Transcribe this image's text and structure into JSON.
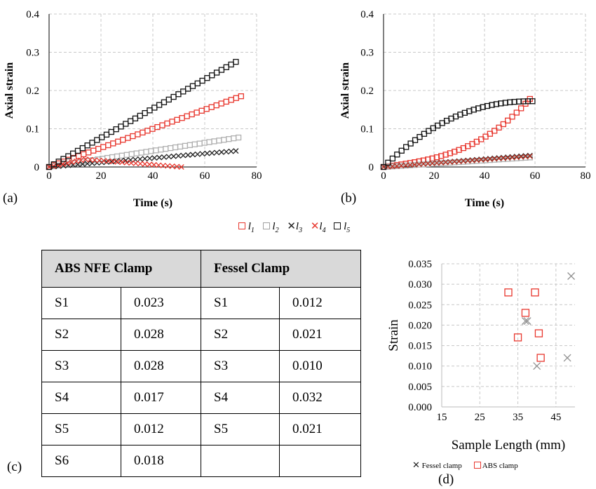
{
  "panels": {
    "a": {
      "label": "(a)"
    },
    "b": {
      "label": "(b)"
    },
    "c": {
      "label": "(c)"
    },
    "d": {
      "label": "(d)"
    }
  },
  "legend_top": [
    {
      "mark": "square",
      "color": "#e8372e",
      "name": "l",
      "sub": "1"
    },
    {
      "mark": "square",
      "color": "#a0a0a0",
      "name": "l",
      "sub": "2"
    },
    {
      "mark": "cross",
      "color": "#222222",
      "name": "l",
      "sub": "3"
    },
    {
      "mark": "cross",
      "color": "#e8372e",
      "name": "l",
      "sub": "4"
    },
    {
      "mark": "square",
      "color": "#111111",
      "name": "l",
      "sub": "5"
    }
  ],
  "table": {
    "headers": [
      "ABS NFE Clamp",
      "Fessel Clamp"
    ],
    "rows": [
      [
        "S1",
        "0.023",
        "S1",
        "0.012"
      ],
      [
        "S2",
        "0.028",
        "S2",
        "0.021"
      ],
      [
        "S3",
        "0.028",
        "S3",
        "0.010"
      ],
      [
        "S4",
        "0.017",
        "S4",
        "0.032"
      ],
      [
        "S5",
        "0.012",
        "S5",
        "0.021"
      ],
      [
        "S6",
        "0.018",
        "",
        ""
      ]
    ]
  },
  "chart_data": [
    {
      "id": "a",
      "type": "scatter",
      "title": "",
      "xlabel": "Time (s)",
      "ylabel": "Axial strain",
      "xlim": [
        0,
        80
      ],
      "ylim": [
        0,
        0.4
      ],
      "xticks": [
        "0",
        "20",
        "40",
        "60",
        "80"
      ],
      "yticks": [
        "0",
        "0.1",
        "0.2",
        "0.3",
        "0.4"
      ],
      "grid": true,
      "series": [
        {
          "key": "l1",
          "marker": "square",
          "color": "#e8372e",
          "curve": "linear",
          "x_end": 74,
          "y_end": 0.185,
          "points": 40
        },
        {
          "key": "l2",
          "marker": "square",
          "color": "#b0b0b0",
          "curve": "linear",
          "x_end": 73,
          "y_end": 0.077,
          "points": 40
        },
        {
          "key": "l3",
          "marker": "cross",
          "color": "#222222",
          "curve": "linear",
          "x_end": 72,
          "y_end": 0.042,
          "points": 40
        },
        {
          "key": "l4",
          "marker": "cross",
          "color": "#e8372e",
          "curve": "hump",
          "x_end": 51,
          "y_peak": 0.02,
          "x_peak": 14,
          "y_end": 0.0,
          "points": 30
        },
        {
          "key": "l5",
          "marker": "square",
          "color": "#111111",
          "curve": "linear",
          "x_end": 72,
          "y_end": 0.275,
          "points": 40
        }
      ]
    },
    {
      "id": "b",
      "type": "scatter",
      "title": "",
      "xlabel": "Time (s)",
      "ylabel": "Axial strain",
      "xlim": [
        0,
        80
      ],
      "ylim": [
        0,
        0.4
      ],
      "xticks": [
        "0",
        "20",
        "40",
        "60",
        "80"
      ],
      "yticks": [
        "0",
        "0.1",
        "0.2",
        "0.3",
        "0.4"
      ],
      "grid": true,
      "series": [
        {
          "key": "l1",
          "marker": "square",
          "color": "#e8372e",
          "curve": "convex",
          "x_end": 58,
          "y_end": 0.178,
          "points": 34
        },
        {
          "key": "l2",
          "marker": "square",
          "color": "#b0b0b0",
          "curve": "linear",
          "x_end": 58,
          "y_end": 0.025,
          "points": 34
        },
        {
          "key": "l3",
          "marker": "cross",
          "color": "#222222",
          "curve": "linear",
          "x_end": 58,
          "y_end": 0.03,
          "points": 34
        },
        {
          "key": "l4",
          "marker": "cross",
          "color": "#c0392b",
          "curve": "linear",
          "x_end": 58,
          "y_end": 0.028,
          "points": 34
        },
        {
          "key": "l5",
          "marker": "square",
          "color": "#111111",
          "curve": "saturate",
          "x_end": 59,
          "y_end": 0.172,
          "points": 34
        }
      ]
    },
    {
      "id": "d",
      "type": "scatter",
      "title": "",
      "xlabel": "Sample Length (mm)",
      "ylabel": "Strain",
      "xlim": [
        15,
        50
      ],
      "ylim": [
        0,
        0.035
      ],
      "xticks": [
        "15",
        "25",
        "35",
        "45"
      ],
      "yticks": [
        "0.000",
        "0.005",
        "0.010",
        "0.015",
        "0.020",
        "0.025",
        "0.030",
        "0.035"
      ],
      "grid": true,
      "series": [
        {
          "name": "Fessel clamp",
          "marker": "cross",
          "color": "#909090",
          "x": [
            49,
            40,
            48,
            37,
            37.5
          ],
          "y": [
            0.032,
            0.01,
            0.012,
            0.021,
            0.021
          ]
        },
        {
          "name": "ABS clamp",
          "marker": "square",
          "color": "#e8372e",
          "x": [
            37,
            32.5,
            39.5,
            35,
            41,
            40.5
          ],
          "y": [
            0.023,
            0.028,
            0.028,
            0.017,
            0.012,
            0.018
          ]
        }
      ]
    }
  ]
}
